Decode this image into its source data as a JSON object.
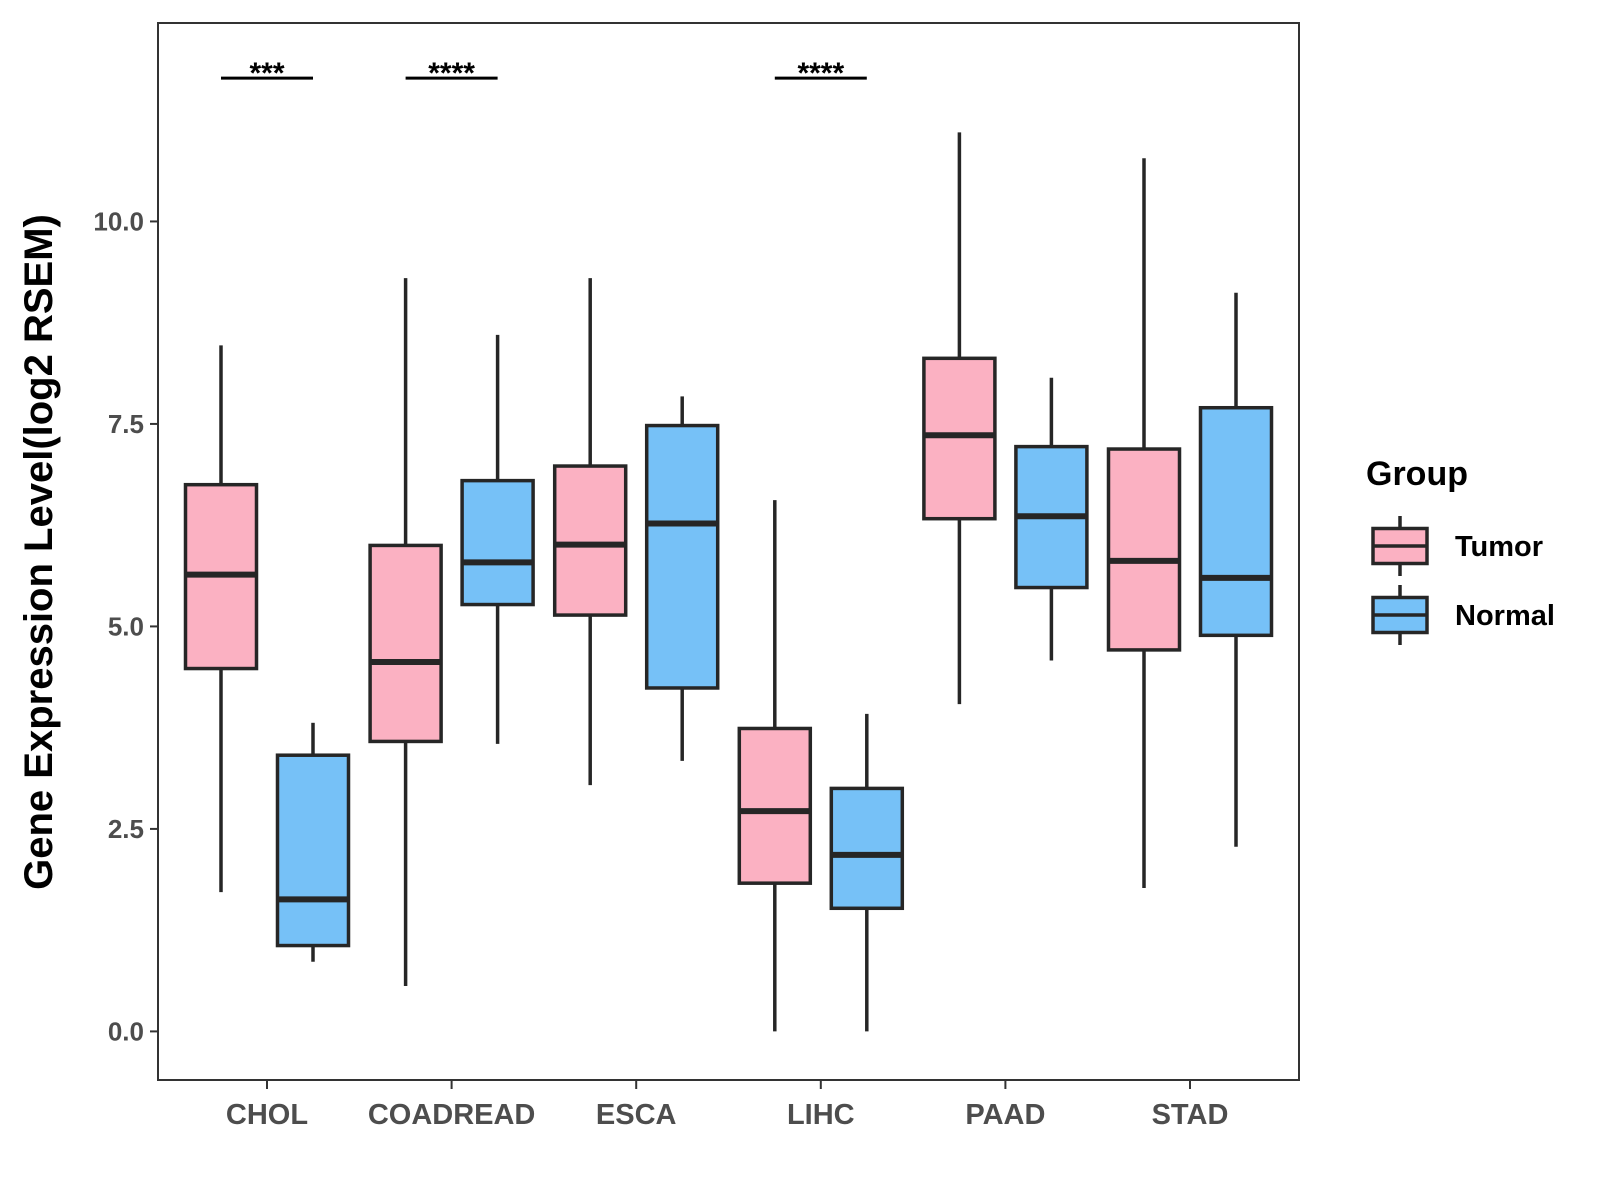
{
  "chart_data": {
    "type": "boxplot",
    "ylabel": "Gene Expression Level(log2 RSEM)",
    "xlabel": "",
    "ylim": [
      -0.6,
      12.45
    ],
    "yticks": [
      0.0,
      2.5,
      5.0,
      7.5,
      10.0
    ],
    "ytick_labels": [
      "0.0",
      "2.5",
      "5.0",
      "7.5",
      "10.0"
    ],
    "categories": [
      "CHOL",
      "COADREAD",
      "ESCA",
      "LIHC",
      "PAAD",
      "STAD"
    ],
    "legend": {
      "title": "Group",
      "position": "right",
      "items": [
        {
          "name": "Tumor",
          "color": "#fbb1c2"
        },
        {
          "name": "Normal",
          "color": "#76c1f7"
        }
      ]
    },
    "series": [
      {
        "name": "Tumor",
        "color": "#fbb1c2",
        "boxes": [
          {
            "min": 1.72,
            "q1": 4.48,
            "median": 5.64,
            "q3": 6.75,
            "max": 8.47
          },
          {
            "min": 0.56,
            "q1": 3.58,
            "median": 4.56,
            "q3": 6.0,
            "max": 9.3
          },
          {
            "min": 3.04,
            "q1": 5.14,
            "median": 6.01,
            "q3": 6.98,
            "max": 9.3
          },
          {
            "min": 0.0,
            "q1": 1.83,
            "median": 2.72,
            "q3": 3.74,
            "max": 6.56
          },
          {
            "min": 4.04,
            "q1": 6.33,
            "median": 7.36,
            "q3": 8.31,
            "max": 11.1
          },
          {
            "min": 1.77,
            "q1": 4.71,
            "median": 5.81,
            "q3": 7.19,
            "max": 10.78
          }
        ]
      },
      {
        "name": "Normal",
        "color": "#76c1f7",
        "boxes": [
          {
            "min": 0.86,
            "q1": 1.06,
            "median": 1.63,
            "q3": 3.41,
            "max": 3.81
          },
          {
            "min": 3.55,
            "q1": 5.27,
            "median": 5.79,
            "q3": 6.8,
            "max": 8.6
          },
          {
            "min": 3.34,
            "q1": 4.24,
            "median": 6.27,
            "q3": 7.48,
            "max": 7.84
          },
          {
            "min": 0.0,
            "q1": 1.52,
            "median": 2.18,
            "q3": 3.0,
            "max": 3.92
          },
          {
            "min": 4.58,
            "q1": 5.48,
            "median": 6.36,
            "q3": 7.22,
            "max": 8.07
          },
          {
            "min": 2.28,
            "q1": 4.89,
            "median": 5.6,
            "q3": 7.7,
            "max": 9.12
          }
        ]
      }
    ],
    "annotations": [
      {
        "category": "CHOL",
        "text": "***",
        "y": 11.77
      },
      {
        "category": "COADREAD",
        "text": "****",
        "y": 11.77
      },
      {
        "category": "LIHC",
        "text": "****",
        "y": 11.77
      }
    ]
  }
}
